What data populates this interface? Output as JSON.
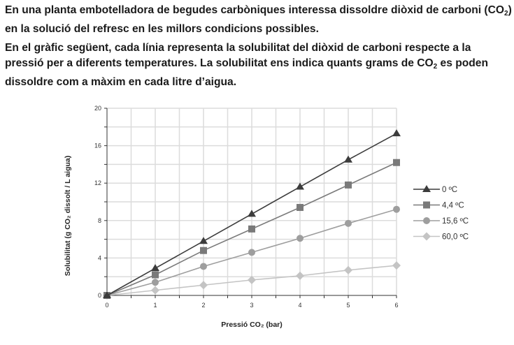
{
  "intro": {
    "p1_a": "En una planta embotelladora de begudes carbòniques interessa dissoldre diòxid de carboni (CO",
    "p1_sub": "2",
    "p1_b": ") en la solució del refresc en les millors condicions possibles.",
    "p2_a": "En el gràfic següent, cada línia representa la solubilitat del diòxid de carboni respecte a la pressió per a diferents temperatures. La solubilitat ens indica quants grams de CO",
    "p2_sub": "2",
    "p2_b": " es poden dissoldre com a màxim en cada litre d’aigua."
  },
  "chart_data": {
    "type": "line",
    "xlabel": "Pressió CO₂ (bar)",
    "ylabel": "Solubilitat (g CO₂ dissolt / L aigua)",
    "x": [
      0,
      1,
      2,
      3,
      4,
      5,
      6
    ],
    "xlim": [
      0,
      6
    ],
    "ylim": [
      0,
      20
    ],
    "xticks": [
      "0",
      "1",
      "2",
      "3",
      "4",
      "5",
      "6"
    ],
    "yticks": [
      "0",
      "4",
      "8",
      "12",
      "16",
      "20"
    ],
    "grid": true,
    "legend": "right",
    "series": [
      {
        "name": "0 ºC",
        "marker": "triangle",
        "color": "#3c3c3c",
        "values": [
          0,
          2.9,
          5.8,
          8.7,
          11.6,
          14.5,
          17.3
        ]
      },
      {
        "name": "4,4 ºC",
        "marker": "square",
        "color": "#7a7a7a",
        "values": [
          0,
          2.2,
          4.8,
          7.1,
          9.4,
          11.8,
          14.2
        ]
      },
      {
        "name": "15,6 ºC",
        "marker": "circle",
        "color": "#9e9e9e",
        "values": [
          0,
          1.4,
          3.1,
          4.6,
          6.1,
          7.7,
          9.2
        ]
      },
      {
        "name": "60,0 ºC",
        "marker": "diamond",
        "color": "#c4c4c4",
        "values": [
          0,
          0.55,
          1.1,
          1.65,
          2.1,
          2.7,
          3.2
        ]
      }
    ]
  }
}
